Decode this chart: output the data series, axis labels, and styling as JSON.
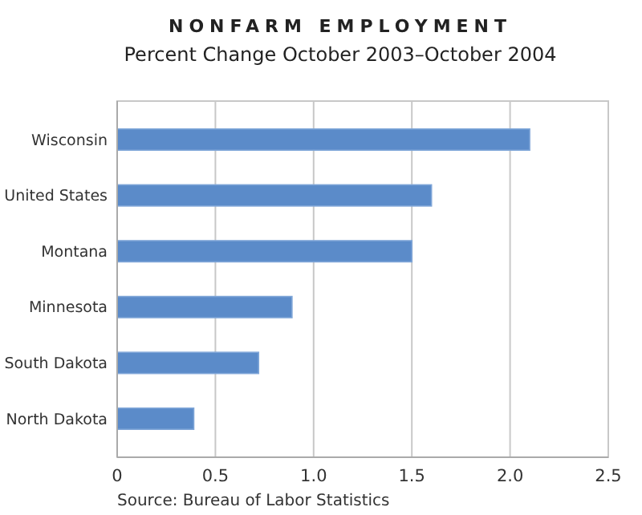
{
  "chart_data": {
    "type": "bar",
    "orientation": "horizontal",
    "title": "NONFARM EMPLOYMENT",
    "subtitle": "Percent Change October 2003–October 2004",
    "categories": [
      "Wisconsin",
      "United States",
      "Montana",
      "Minnesota",
      "South Dakota",
      "North Dakota"
    ],
    "values": [
      2.1,
      1.6,
      1.5,
      0.89,
      0.72,
      0.39
    ],
    "color": "#5b8bc9",
    "xlim": [
      0,
      2.5
    ],
    "xticks": [
      0,
      0.5,
      {
        "value": 1,
        "label": "1.0"
      },
      1.5,
      {
        "value": 2,
        "label": "2.0"
      },
      2.5
    ],
    "grid": "x",
    "annotations": [
      "Source: Bureau of Labor Statistics"
    ]
  }
}
